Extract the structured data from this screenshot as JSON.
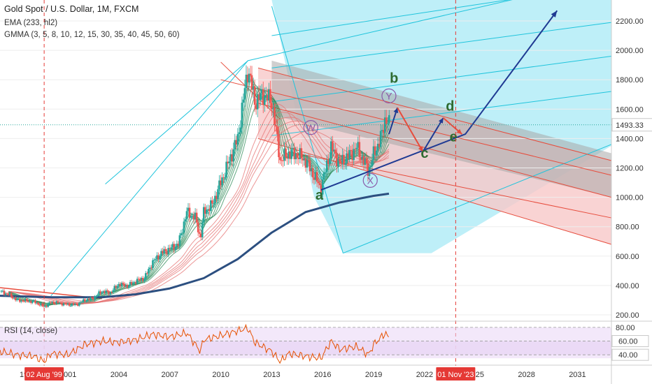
{
  "legend": {
    "title": "Gold Spot / U.S. Dollar, 1M, FXCM",
    "ema": "EMA (233, hl2)",
    "gmma": "GMMA (3, 5, 8, 10, 12, 15, 30, 35, 40, 45, 50, 60)",
    "rsi": "RSI (14, close)"
  },
  "colors": {
    "up_candle": "#26a69a",
    "down_candle": "#ef5350",
    "ema": "#2c4f80",
    "gmma_short": "#2e8b57",
    "gmma_long": "#e57373",
    "fork_blue": "#1fc4dc",
    "fork_red": "#e74c3c",
    "projection": "#1f3a93",
    "rsi_line": "#e65100",
    "rsi_band": "#e9d6f5",
    "marker": "#e53935"
  },
  "chart_data": {
    "type": "candlestick",
    "title": "Gold Spot / U.S. Dollar, 1M, FXCM",
    "price_axis": {
      "min": 200,
      "max": 2300,
      "ticks": [
        "2200.00",
        "2000.00",
        "1800.00",
        "1600.00",
        "1400.00",
        "1200.00",
        "1000.00",
        "800.00",
        "600.00",
        "400.00",
        "200.00"
      ]
    },
    "time_axis": {
      "min": 1997.0,
      "max": 2033.0,
      "ticks": [
        "2001",
        "2004",
        "2007",
        "2010",
        "2013",
        "2016",
        "2019",
        "2022",
        "2025",
        "2028",
        "2031"
      ],
      "partial_tick": "199"
    },
    "current_price": {
      "value": 1493.33,
      "label": "1493.33"
    },
    "date_markers": [
      {
        "x": 1999.6,
        "label": "02 Aug '99"
      },
      {
        "x": 2023.83,
        "label": "01 Nov '23"
      }
    ],
    "price_path": [
      [
        1997.0,
        360
      ],
      [
        1997.5,
        340
      ],
      [
        1998.0,
        300
      ],
      [
        1998.5,
        295
      ],
      [
        1999.0,
        290
      ],
      [
        1999.6,
        255
      ],
      [
        2000.0,
        285
      ],
      [
        2000.5,
        280
      ],
      [
        2001.0,
        270
      ],
      [
        2001.5,
        270
      ],
      [
        2002.0,
        300
      ],
      [
        2002.5,
        315
      ],
      [
        2003.0,
        360
      ],
      [
        2003.5,
        350
      ],
      [
        2004.0,
        410
      ],
      [
        2004.5,
        395
      ],
      [
        2005.0,
        430
      ],
      [
        2005.5,
        450
      ],
      [
        2006.0,
        560
      ],
      [
        2006.5,
        620
      ],
      [
        2007.0,
        650
      ],
      [
        2007.5,
        680
      ],
      [
        2008.0,
        900
      ],
      [
        2008.5,
        860
      ],
      [
        2008.8,
        720
      ],
      [
        2009.0,
        900
      ],
      [
        2009.5,
        950
      ],
      [
        2010.0,
        1100
      ],
      [
        2010.5,
        1250
      ],
      [
        2011.0,
        1400
      ],
      [
        2011.6,
        1880
      ],
      [
        2012.0,
        1650
      ],
      [
        2012.5,
        1700
      ],
      [
        2013.0,
        1650
      ],
      [
        2013.5,
        1250
      ],
      [
        2014.0,
        1300
      ],
      [
        2014.5,
        1290
      ],
      [
        2015.0,
        1250
      ],
      [
        2015.9,
        1060
      ],
      [
        2016.5,
        1340
      ],
      [
        2017.0,
        1230
      ],
      [
        2017.5,
        1280
      ],
      [
        2018.0,
        1340
      ],
      [
        2018.7,
        1180
      ],
      [
        2019.0,
        1290
      ],
      [
        2019.5,
        1430
      ],
      [
        2019.7,
        1550
      ],
      [
        2019.9,
        1493
      ]
    ],
    "ema_233": [
      [
        1997.0,
        330
      ],
      [
        2000.0,
        320
      ],
      [
        2003.0,
        320
      ],
      [
        2005.0,
        340
      ],
      [
        2007.0,
        380
      ],
      [
        2009.0,
        450
      ],
      [
        2011.0,
        580
      ],
      [
        2013.0,
        760
      ],
      [
        2015.0,
        900
      ],
      [
        2017.0,
        965
      ],
      [
        2019.0,
        1010
      ],
      [
        2019.9,
        1025
      ]
    ],
    "wave_labels": [
      {
        "label": "a",
        "x": 2015.8,
        "y": 985
      },
      {
        "label": "b",
        "x": 2020.2,
        "y": 1780
      },
      {
        "label": "c",
        "x": 2022.0,
        "y": 1270
      },
      {
        "label": "d",
        "x": 2023.5,
        "y": 1590
      },
      {
        "label": "e",
        "x": 2023.7,
        "y": 1380
      }
    ],
    "circle_labels": [
      {
        "label": "W",
        "x": 2015.3,
        "y": 1475
      },
      {
        "label": "Y",
        "x": 2019.9,
        "y": 1690
      },
      {
        "label": "X",
        "x": 2018.8,
        "y": 1115
      }
    ],
    "projection_path": [
      [
        2015.9,
        1050
      ],
      [
        2024.4,
        1430
      ],
      [
        2029.8,
        2270
      ]
    ],
    "zigzag": [
      [
        2019.9,
        1430
      ],
      [
        2020.4,
        1610
      ],
      [
        2021.9,
        1310
      ],
      [
        2023.1,
        1540
      ],
      [
        2024.2,
        1430
      ]
    ],
    "rsi": {
      "levels": [
        "80.00",
        "60.00",
        "40.00"
      ],
      "range": [
        30,
        85
      ],
      "band": [
        40,
        60
      ],
      "values": [
        [
          1997,
          45
        ],
        [
          1998,
          40
        ],
        [
          1999,
          38
        ],
        [
          1999.6,
          30
        ],
        [
          2000,
          42
        ],
        [
          2001,
          40
        ],
        [
          2002,
          55
        ],
        [
          2003,
          60
        ],
        [
          2004,
          58
        ],
        [
          2005,
          62
        ],
        [
          2006,
          70
        ],
        [
          2007,
          66
        ],
        [
          2008,
          72
        ],
        [
          2008.8,
          45
        ],
        [
          2009,
          62
        ],
        [
          2010,
          68
        ],
        [
          2011,
          75
        ],
        [
          2011.6,
          79
        ],
        [
          2012,
          58
        ],
        [
          2013,
          45
        ],
        [
          2013.5,
          30
        ],
        [
          2014,
          42
        ],
        [
          2015,
          38
        ],
        [
          2015.9,
          35
        ],
        [
          2016.5,
          60
        ],
        [
          2017,
          48
        ],
        [
          2018,
          52
        ],
        [
          2018.7,
          40
        ],
        [
          2019,
          55
        ],
        [
          2019.7,
          72
        ],
        [
          2019.9,
          63
        ]
      ]
    }
  }
}
